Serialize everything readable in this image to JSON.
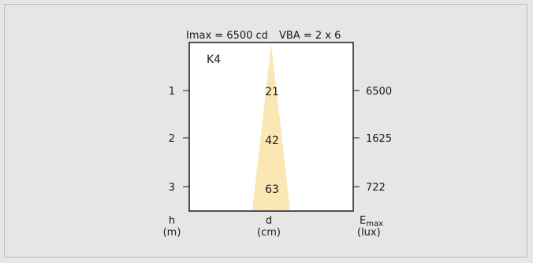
{
  "header": {
    "imax": "Imax = 6500 cd",
    "vba": "VBA = 2 x 6"
  },
  "diagram": {
    "code": "K4",
    "beam_color": "#fae7b4",
    "levels": [
      {
        "height": "1",
        "diameter": "21",
        "emax": "6500"
      },
      {
        "height": "2",
        "diameter": "42",
        "emax": "1625"
      },
      {
        "height": "3",
        "diameter": "63",
        "emax": "722"
      }
    ]
  },
  "axes": {
    "height_label": "h",
    "height_unit": "(m)",
    "diameter_label": "d",
    "diameter_unit": "(cm)",
    "emax_label_main": "E",
    "emax_label_sub": "max",
    "emax_unit": "(lux)"
  }
}
